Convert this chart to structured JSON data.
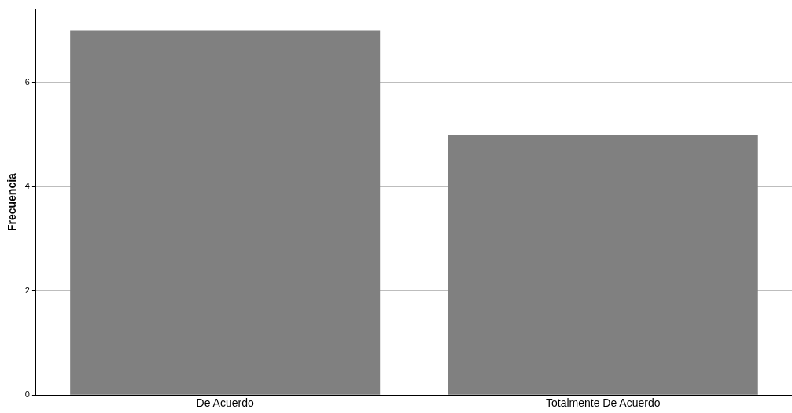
{
  "chart_data": {
    "type": "bar",
    "ylabel": "Frecuencia",
    "categories": [
      "De Acuerdo",
      "Totalmente De Acuerdo"
    ],
    "values": [
      7,
      5
    ],
    "color": "#808080",
    "ylim": [
      0,
      7.4
    ],
    "yticks": [
      0,
      2,
      4,
      6
    ],
    "grid": "y",
    "legend": false
  }
}
